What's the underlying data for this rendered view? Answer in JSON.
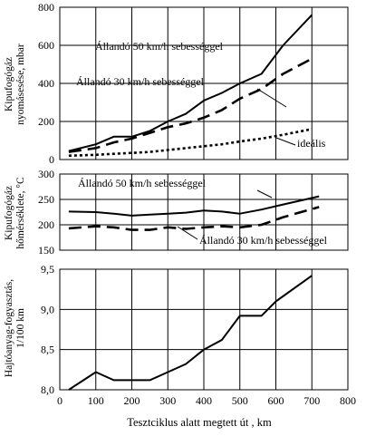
{
  "chart_data": [
    {
      "type": "line",
      "ylabel": [
        "Kipufogógáz",
        "nyomásesése, mbar"
      ],
      "xlim": [
        0,
        800
      ],
      "ylim": [
        0,
        800
      ],
      "yticks": [
        0,
        200,
        400,
        600,
        800
      ],
      "grid": true,
      "series": [
        {
          "name": "Állandó 50 km/h sebességgel",
          "style": "solid",
          "x": [
            25,
            100,
            150,
            200,
            250,
            300,
            350,
            400,
            450,
            500,
            560,
            620,
            700
          ],
          "y": [
            45,
            80,
            120,
            120,
            150,
            200,
            240,
            310,
            350,
            400,
            450,
            600,
            760
          ]
        },
        {
          "name": "Állandó 30 km/h sebességgel",
          "style": "dashed",
          "x": [
            25,
            100,
            150,
            200,
            250,
            300,
            350,
            400,
            450,
            500,
            560,
            620,
            700
          ],
          "y": [
            40,
            60,
            90,
            110,
            140,
            170,
            190,
            220,
            260,
            320,
            370,
            450,
            530
          ]
        },
        {
          "name": "ideális",
          "style": "dotted",
          "x": [
            25,
            100,
            150,
            200,
            250,
            300,
            350,
            400,
            450,
            500,
            560,
            620,
            700
          ],
          "y": [
            20,
            25,
            30,
            35,
            40,
            50,
            60,
            70,
            80,
            95,
            110,
            130,
            160
          ]
        }
      ]
    },
    {
      "type": "line",
      "ylabel": [
        "Kipufogógáz",
        "hőmérséklete, °C"
      ],
      "xlim": [
        0,
        800
      ],
      "ylim": [
        150,
        300
      ],
      "yticks": [
        150,
        200,
        250,
        300
      ],
      "grid": true,
      "series": [
        {
          "name": "Állandó 50 km/h sebességgel",
          "style": "solid",
          "x": [
            25,
            100,
            150,
            200,
            250,
            300,
            350,
            400,
            450,
            500,
            560,
            620,
            720
          ],
          "y": [
            226,
            225,
            222,
            218,
            220,
            222,
            224,
            228,
            226,
            222,
            230,
            240,
            256
          ]
        },
        {
          "name": "Állandó 30 km/h sebességgel",
          "style": "dashed",
          "x": [
            25,
            100,
            150,
            200,
            250,
            300,
            350,
            400,
            450,
            500,
            560,
            620,
            720
          ],
          "y": [
            193,
            197,
            195,
            190,
            190,
            195,
            192,
            195,
            197,
            195,
            200,
            215,
            235
          ]
        }
      ]
    },
    {
      "type": "line",
      "xlabel": "Tesztciklus alatt megtett út , km",
      "ylabel": [
        "Hajtóanyag-fogyasztás,",
        "1/100 km"
      ],
      "xlim": [
        0,
        800
      ],
      "ylim": [
        8.0,
        9.5
      ],
      "xticks": [
        0,
        100,
        200,
        300,
        400,
        500,
        600,
        700,
        800
      ],
      "yticks": [
        8.0,
        8.5,
        9.0,
        9.5
      ],
      "ytick_labels": [
        "8,0",
        "8,5",
        "9,0",
        "9,5"
      ],
      "grid": true,
      "series": [
        {
          "name": "",
          "style": "solid",
          "x": [
            25,
            100,
            150,
            200,
            250,
            300,
            350,
            400,
            450,
            500,
            560,
            600,
            700
          ],
          "y": [
            8.0,
            8.22,
            8.12,
            8.12,
            8.12,
            8.22,
            8.32,
            8.5,
            8.62,
            8.92,
            8.92,
            9.1,
            9.42
          ]
        }
      ]
    }
  ],
  "annotations": {
    "top_50": "Állandó 50 km/h sebességgel",
    "top_30": "Állandó 30 km/h sebességgel",
    "top_ideal": "ideális",
    "mid_50": "Állandó 50 km/h sebességgel",
    "mid_30": "Állandó 30 km/h sebességgel"
  }
}
